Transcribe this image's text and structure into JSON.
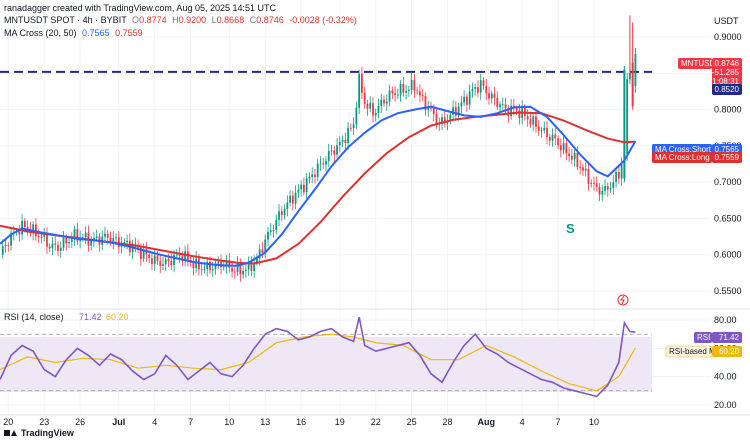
{
  "header": {
    "author_line": "ranadagger created with TradingView.com, Aug 05, 2025 14:51 UTC",
    "symbol": "MNTUSDT SPOT · 4h · BYBIT",
    "ohlc": {
      "o_label": "O",
      "o": "0.8774",
      "h_label": "H",
      "h": "0.9200",
      "l_label": "L",
      "l": "0.8668",
      "c_label": "C",
      "c": "0.8746",
      "chg": "-0.0028 (-0.32%)"
    },
    "ma_title": "MA Cross (20, 50)",
    "ma_short": "0.7565",
    "ma_long": "0.7559"
  },
  "price_axis": {
    "currency": "USDT",
    "ticks": [
      "0.9000",
      "0.8500",
      "0.8000",
      "0.7500",
      "0.7000",
      "0.6500",
      "0.6000",
      "0.5500"
    ]
  },
  "tags": {
    "symbol_tag": "MNTUSDT",
    "price": "0.8746",
    "change": "−51.285",
    "countdown": "01:08:31",
    "level": "0.8520",
    "short_label": "MA Cross:Short MA",
    "short_value": "0.7565",
    "long_label": "MA Cross:Long MA",
    "long_value": "0.7559"
  },
  "annotation": {
    "s_mark": "S"
  },
  "rsi": {
    "title": "RSI (14, close)",
    "value": "71.42",
    "ma_value": "60.20",
    "tag_label": "RSI",
    "ma_label": "RSI-based MA",
    "ticks": [
      "80.00",
      "60.00",
      "40.00",
      "20.00"
    ]
  },
  "time_axis": {
    "ticks": [
      "20",
      "23",
      "26",
      "Jul",
      "4",
      "7",
      "10",
      "13",
      "16",
      "19",
      "22",
      "25",
      "28",
      "Aug",
      "4",
      "7",
      "10"
    ]
  },
  "footer": {
    "brand": "TradingView"
  },
  "colors": {
    "up": "#089981",
    "down": "#f23645",
    "ma_short": "#2962ff",
    "ma_long": "#e0302f",
    "rsi": "#7e57c2",
    "rsi_ma": "#f0b90b",
    "level": "#1e2a8c",
    "text": "#131722"
  },
  "chart_data": [
    {
      "type": "candlestick",
      "title": "MNTUSDT SPOT · 4h · BYBIT",
      "ylabel": "USDT",
      "ylim": [
        0.528,
        0.94
      ],
      "x_ticks": [
        "20",
        "23",
        "26",
        "Jul",
        "4",
        "7",
        "10",
        "13",
        "16",
        "19",
        "22",
        "25",
        "28",
        "Aug",
        "4",
        "7",
        "10"
      ],
      "horizontal_level": 0.852,
      "series": [
        {
          "name": "MA Cross:Short MA",
          "period": 20,
          "last": 0.7565
        },
        {
          "name": "MA Cross:Long MA",
          "period": 50,
          "last": 0.7559
        }
      ],
      "ma_short_path": [
        [
          0,
          0.615
        ],
        [
          4,
          0.628
        ],
        [
          8,
          0.636
        ],
        [
          12,
          0.633
        ],
        [
          16,
          0.63
        ],
        [
          22,
          0.626
        ],
        [
          28,
          0.622
        ],
        [
          34,
          0.62
        ],
        [
          40,
          0.617
        ],
        [
          46,
          0.612
        ],
        [
          52,
          0.606
        ],
        [
          58,
          0.6
        ],
        [
          64,
          0.595
        ],
        [
          70,
          0.59
        ],
        [
          76,
          0.587
        ],
        [
          82,
          0.585
        ],
        [
          86,
          0.585
        ],
        [
          90,
          0.589
        ],
        [
          96,
          0.603
        ],
        [
          102,
          0.628
        ],
        [
          108,
          0.66
        ],
        [
          114,
          0.69
        ],
        [
          120,
          0.722
        ],
        [
          126,
          0.748
        ],
        [
          132,
          0.768
        ],
        [
          138,
          0.785
        ],
        [
          144,
          0.795
        ],
        [
          150,
          0.8
        ],
        [
          156,
          0.804
        ],
        [
          162,
          0.798
        ],
        [
          168,
          0.792
        ],
        [
          174,
          0.79
        ],
        [
          180,
          0.795
        ],
        [
          186,
          0.803
        ],
        [
          192,
          0.804
        ],
        [
          198,
          0.79
        ],
        [
          204,
          0.765
        ],
        [
          210,
          0.738
        ],
        [
          216,
          0.715
        ],
        [
          220,
          0.708
        ],
        [
          226,
          0.73
        ],
        [
          230,
          0.7565
        ]
      ],
      "ma_long_path": [
        [
          0,
          0.64
        ],
        [
          10,
          0.632
        ],
        [
          20,
          0.627
        ],
        [
          30,
          0.622
        ],
        [
          40,
          0.617
        ],
        [
          50,
          0.612
        ],
        [
          60,
          0.605
        ],
        [
          70,
          0.598
        ],
        [
          80,
          0.592
        ],
        [
          86,
          0.589
        ],
        [
          92,
          0.588
        ],
        [
          100,
          0.595
        ],
        [
          108,
          0.615
        ],
        [
          116,
          0.645
        ],
        [
          124,
          0.68
        ],
        [
          132,
          0.712
        ],
        [
          140,
          0.74
        ],
        [
          148,
          0.762
        ],
        [
          156,
          0.778
        ],
        [
          164,
          0.786
        ],
        [
          172,
          0.79
        ],
        [
          180,
          0.793
        ],
        [
          188,
          0.796
        ],
        [
          196,
          0.795
        ],
        [
          204,
          0.785
        ],
        [
          212,
          0.772
        ],
        [
          220,
          0.76
        ],
        [
          226,
          0.755
        ],
        [
          230,
          0.7559
        ]
      ],
      "close_path": [
        [
          0,
          0.6
        ],
        [
          3,
          0.62
        ],
        [
          6,
          0.633
        ],
        [
          9,
          0.64
        ],
        [
          12,
          0.632
        ],
        [
          15,
          0.625
        ],
        [
          18,
          0.612
        ],
        [
          21,
          0.61
        ],
        [
          24,
          0.618
        ],
        [
          27,
          0.626
        ],
        [
          30,
          0.624
        ],
        [
          33,
          0.62
        ],
        [
          36,
          0.622
        ],
        [
          39,
          0.625
        ],
        [
          42,
          0.618
        ],
        [
          45,
          0.615
        ],
        [
          48,
          0.612
        ],
        [
          51,
          0.604
        ],
        [
          54,
          0.596
        ],
        [
          57,
          0.59
        ],
        [
          60,
          0.588
        ],
        [
          63,
          0.596
        ],
        [
          66,
          0.6
        ],
        [
          69,
          0.59
        ],
        [
          72,
          0.583
        ],
        [
          75,
          0.582
        ],
        [
          78,
          0.585
        ],
        [
          81,
          0.588
        ],
        [
          84,
          0.58
        ],
        [
          87,
          0.578
        ],
        [
          90,
          0.582
        ],
        [
          93,
          0.593
        ],
        [
          96,
          0.62
        ],
        [
          99,
          0.64
        ],
        [
          102,
          0.66
        ],
        [
          105,
          0.675
        ],
        [
          108,
          0.688
        ],
        [
          111,
          0.7
        ],
        [
          114,
          0.715
        ],
        [
          117,
          0.728
        ],
        [
          120,
          0.742
        ],
        [
          123,
          0.752
        ],
        [
          126,
          0.768
        ],
        [
          128,
          0.78
        ],
        [
          130,
          0.84
        ],
        [
          132,
          0.81
        ],
        [
          135,
          0.795
        ],
        [
          138,
          0.808
        ],
        [
          141,
          0.82
        ],
        [
          144,
          0.825
        ],
        [
          147,
          0.828
        ],
        [
          150,
          0.833
        ],
        [
          153,
          0.812
        ],
        [
          156,
          0.798
        ],
        [
          159,
          0.78
        ],
        [
          162,
          0.788
        ],
        [
          165,
          0.8
        ],
        [
          168,
          0.812
        ],
        [
          171,
          0.826
        ],
        [
          174,
          0.835
        ],
        [
          177,
          0.82
        ],
        [
          180,
          0.81
        ],
        [
          183,
          0.8
        ],
        [
          186,
          0.8
        ],
        [
          189,
          0.795
        ],
        [
          192,
          0.785
        ],
        [
          195,
          0.775
        ],
        [
          198,
          0.765
        ],
        [
          201,
          0.758
        ],
        [
          204,
          0.745
        ],
        [
          207,
          0.735
        ],
        [
          210,
          0.722
        ],
        [
          213,
          0.705
        ],
        [
          216,
          0.69
        ],
        [
          219,
          0.688
        ],
        [
          222,
          0.7
        ],
        [
          224,
          0.712
        ],
        [
          226,
          0.738
        ],
        [
          227,
          0.835
        ],
        [
          228,
          0.86
        ],
        [
          229,
          0.83
        ],
        [
          230,
          0.8746
        ]
      ]
    },
    {
      "type": "line",
      "title": "RSI (14, close)",
      "ylim": [
        15,
        85
      ],
      "y_ticks": [
        80,
        60,
        40,
        20
      ],
      "overbought": 70,
      "oversold": 30,
      "series": [
        {
          "name": "RSI",
          "last": 71.42,
          "values": [
            [
              0,
              38
            ],
            [
              4,
              55
            ],
            [
              8,
              62
            ],
            [
              12,
              58
            ],
            [
              16,
              45
            ],
            [
              20,
              40
            ],
            [
              24,
              52
            ],
            [
              28,
              60
            ],
            [
              32,
              55
            ],
            [
              36,
              48
            ],
            [
              40,
              56
            ],
            [
              44,
              52
            ],
            [
              48,
              44
            ],
            [
              52,
              38
            ],
            [
              56,
              42
            ],
            [
              60,
              55
            ],
            [
              64,
              48
            ],
            [
              68,
              38
            ],
            [
              72,
              44
            ],
            [
              76,
              50
            ],
            [
              80,
              42
            ],
            [
              84,
              40
            ],
            [
              88,
              48
            ],
            [
              92,
              60
            ],
            [
              96,
              70
            ],
            [
              100,
              74
            ],
            [
              104,
              72
            ],
            [
              108,
              66
            ],
            [
              112,
              68
            ],
            [
              116,
              72
            ],
            [
              120,
              74
            ],
            [
              124,
              68
            ],
            [
              128,
              65
            ],
            [
              130,
              82
            ],
            [
              132,
              62
            ],
            [
              136,
              58
            ],
            [
              140,
              60
            ],
            [
              144,
              62
            ],
            [
              148,
              64
            ],
            [
              152,
              55
            ],
            [
              156,
              42
            ],
            [
              160,
              36
            ],
            [
              164,
              50
            ],
            [
              168,
              62
            ],
            [
              172,
              70
            ],
            [
              176,
              60
            ],
            [
              180,
              56
            ],
            [
              184,
              50
            ],
            [
              188,
              46
            ],
            [
              192,
              42
            ],
            [
              196,
              38
            ],
            [
              200,
              36
            ],
            [
              204,
              32
            ],
            [
              208,
              30
            ],
            [
              212,
              28
            ],
            [
              216,
              26
            ],
            [
              220,
              34
            ],
            [
              224,
              50
            ],
            [
              226,
              78
            ],
            [
              228,
              72
            ],
            [
              230,
              71.42
            ]
          ]
        },
        {
          "name": "RSI-based MA",
          "last": 60.2,
          "values": [
            [
              0,
              45
            ],
            [
              10,
              54
            ],
            [
              20,
              50
            ],
            [
              30,
              53
            ],
            [
              40,
              52
            ],
            [
              50,
              46
            ],
            [
              60,
              48
            ],
            [
              70,
              46
            ],
            [
              80,
              45
            ],
            [
              90,
              50
            ],
            [
              100,
              64
            ],
            [
              110,
              68
            ],
            [
              120,
              70
            ],
            [
              128,
              68
            ],
            [
              136,
              64
            ],
            [
              146,
              62
            ],
            [
              156,
              52
            ],
            [
              166,
              52
            ],
            [
              176,
              62
            ],
            [
              186,
              54
            ],
            [
              196,
              44
            ],
            [
              206,
              35
            ],
            [
              216,
              30
            ],
            [
              224,
              40
            ],
            [
              230,
              60.2
            ]
          ]
        }
      ]
    }
  ]
}
